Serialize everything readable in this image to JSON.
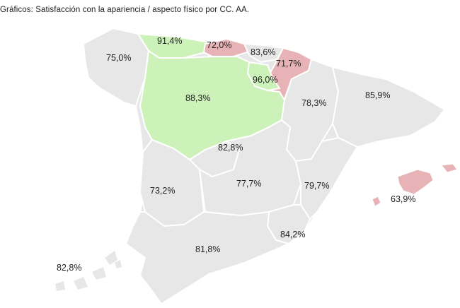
{
  "title": "Gráficos: Satisfacción con la apariencia / aspecto físico por CC. AA.",
  "colors": {
    "neutral": "#e7e7e7",
    "high": "#cdf2b9",
    "low": "#e8b3b6",
    "border": "#ffffff"
  },
  "regions": [
    {
      "value": "91,4%",
      "tone": "high"
    },
    {
      "value": "72,0%",
      "tone": "low"
    },
    {
      "value": "75,0%",
      "tone": "neutral"
    },
    {
      "value": "83,6%",
      "tone": "neutral"
    },
    {
      "value": "71,7%",
      "tone": "low"
    },
    {
      "value": "96,0%",
      "tone": "high"
    },
    {
      "value": "88,3%",
      "tone": "high"
    },
    {
      "value": "78,3%",
      "tone": "neutral"
    },
    {
      "value": "85,9%",
      "tone": "neutral"
    },
    {
      "value": "82,8%",
      "tone": "neutral"
    },
    {
      "value": "73,2%",
      "tone": "neutral"
    },
    {
      "value": "77,7%",
      "tone": "neutral"
    },
    {
      "value": "79,7%",
      "tone": "neutral"
    },
    {
      "value": "63,9%",
      "tone": "low"
    },
    {
      "value": "84,2%",
      "tone": "neutral"
    },
    {
      "value": "81,8%",
      "tone": "neutral"
    },
    {
      "value": "82,8%",
      "tone": "neutral"
    }
  ]
}
